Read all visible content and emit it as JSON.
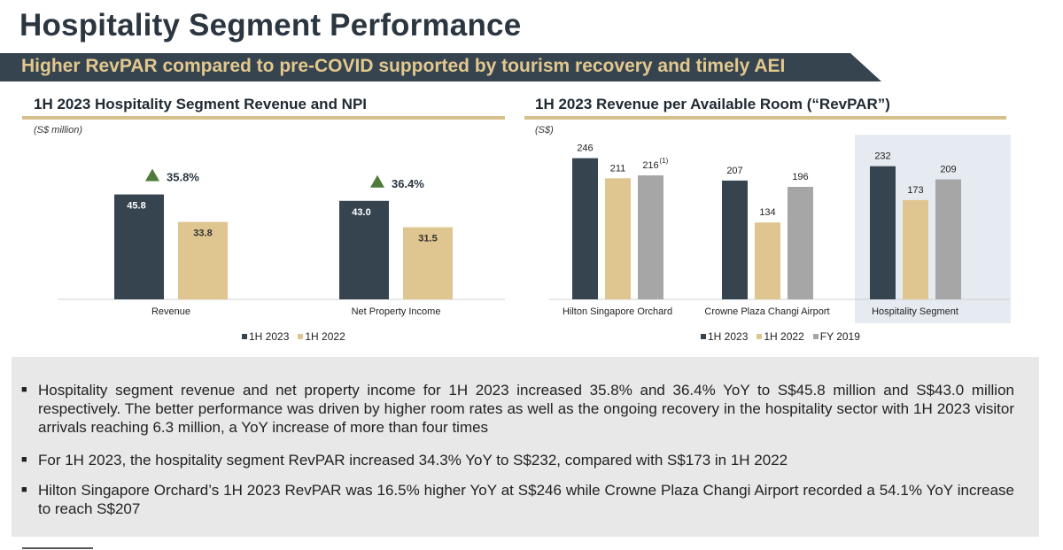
{
  "page": {
    "title": "Hospitality Segment Performance",
    "banner": "Higher RevPAR compared to pre-COVID supported by tourism recovery and timely AEI"
  },
  "colors": {
    "dark": "#364450",
    "tan": "#dfc58f",
    "grey": "#a6a6a6",
    "growth": "#4f7a3a",
    "highlight": "#e6ebf2",
    "banner": "#364450"
  },
  "chart_data": [
    {
      "type": "bar",
      "title": "1H 2023 Hospitality Segment Revenue and NPI",
      "unit": "(S$ million)",
      "categories": [
        "Revenue",
        "Net Property Income"
      ],
      "series": [
        {
          "name": "1H 2023",
          "values": [
            45.8,
            43.0
          ],
          "labels": [
            "45.8",
            "43.0"
          ]
        },
        {
          "name": "1H 2022",
          "values": [
            33.8,
            31.5
          ],
          "labels": [
            "33.8",
            "31.5"
          ]
        }
      ],
      "annotations": [
        "35.8%",
        "36.4%"
      ],
      "ylim": [
        0,
        58
      ]
    },
    {
      "type": "bar",
      "title": "1H 2023 Revenue per Available Room (“RevPAR”)",
      "unit": "(S$)",
      "categories": [
        "Hilton Singapore Orchard",
        "Crowne Plaza Changi Airport",
        "Hospitality Segment"
      ],
      "series": [
        {
          "name": "1H 2023",
          "values": [
            246,
            207,
            232
          ]
        },
        {
          "name": "1H 2022",
          "values": [
            211,
            134,
            173
          ]
        },
        {
          "name": "FY 2019",
          "values": [
            216,
            196,
            209
          ]
        }
      ],
      "footnotes": {
        "0-2": "(1)"
      },
      "highlight_category": "Hospitality Segment",
      "ylim": [
        0,
        250
      ]
    }
  ],
  "notes": [
    "Hospitality segment revenue and net property income for 1H 2023 increased 35.8% and 36.4% YoY to S$45.8 million and S$43.0 million respectively. The better performance was driven by higher room rates as well as the ongoing recovery in the hospitality sector with 1H 2023 visitor arrivals reaching 6.3 million, a YoY increase of more than four times",
    "For 1H 2023, the hospitality segment RevPAR increased 34.3% YoY to S$232, compared with S$173 in 1H 2022",
    "Hilton Singapore Orchard’s 1H 2023 RevPAR was 16.5% higher YoY at S$246 while Crowne Plaza Changi Airport recorded a 54.1% YoY increase to reach S$207"
  ]
}
